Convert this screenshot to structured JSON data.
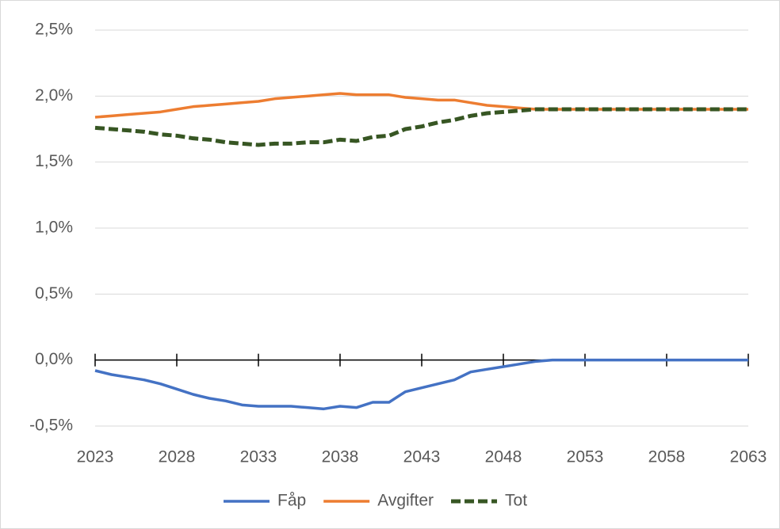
{
  "chart_data": {
    "type": "line",
    "x": [
      2023,
      2024,
      2025,
      2026,
      2027,
      2028,
      2029,
      2030,
      2031,
      2032,
      2033,
      2034,
      2035,
      2036,
      2037,
      2038,
      2039,
      2040,
      2041,
      2042,
      2043,
      2044,
      2045,
      2046,
      2047,
      2048,
      2049,
      2050,
      2051,
      2052,
      2053,
      2054,
      2055,
      2056,
      2057,
      2058,
      2059,
      2060,
      2061,
      2062,
      2063
    ],
    "series": [
      {
        "name": "Fåp",
        "color": "#4472c4",
        "dash": false,
        "values": [
          -0.08,
          -0.11,
          -0.13,
          -0.15,
          -0.18,
          -0.22,
          -0.26,
          -0.29,
          -0.31,
          -0.34,
          -0.35,
          -0.35,
          -0.35,
          -0.36,
          -0.37,
          -0.35,
          -0.36,
          -0.32,
          -0.32,
          -0.24,
          -0.21,
          -0.18,
          -0.15,
          -0.09,
          -0.07,
          -0.05,
          -0.03,
          -0.01,
          0,
          0,
          0,
          0,
          0,
          0,
          0,
          0,
          0,
          0,
          0,
          0,
          0
        ]
      },
      {
        "name": "Avgifter",
        "color": "#ed7d31",
        "dash": false,
        "values": [
          1.84,
          1.85,
          1.86,
          1.87,
          1.88,
          1.9,
          1.92,
          1.93,
          1.94,
          1.95,
          1.96,
          1.98,
          1.99,
          2.0,
          2.01,
          2.02,
          2.01,
          2.01,
          2.01,
          1.99,
          1.98,
          1.97,
          1.97,
          1.95,
          1.93,
          1.92,
          1.91,
          1.9,
          1.9,
          1.9,
          1.9,
          1.9,
          1.9,
          1.9,
          1.9,
          1.9,
          1.9,
          1.9,
          1.9,
          1.9,
          1.9
        ]
      },
      {
        "name": "Tot",
        "color": "#375623",
        "dash": true,
        "values": [
          1.76,
          1.75,
          1.74,
          1.73,
          1.71,
          1.7,
          1.68,
          1.67,
          1.65,
          1.64,
          1.63,
          1.64,
          1.64,
          1.65,
          1.65,
          1.67,
          1.66,
          1.69,
          1.7,
          1.75,
          1.77,
          1.8,
          1.82,
          1.85,
          1.87,
          1.88,
          1.89,
          1.9,
          1.9,
          1.9,
          1.9,
          1.9,
          1.9,
          1.9,
          1.9,
          1.9,
          1.9,
          1.9,
          1.9,
          1.9,
          1.9
        ]
      }
    ],
    "xlim": [
      2023,
      2063
    ],
    "xticks": [
      2023,
      2028,
      2033,
      2038,
      2043,
      2048,
      2053,
      2058,
      2063
    ],
    "ylim": [
      -0.5,
      2.5
    ],
    "yticks": [
      {
        "value": -0.5,
        "label": "-0,5%"
      },
      {
        "value": 0,
        "label": "0,0%"
      },
      {
        "value": 0.5,
        "label": "0,5%"
      },
      {
        "value": 1,
        "label": "1,0%"
      },
      {
        "value": 1.5,
        "label": "1,5%"
      },
      {
        "value": 2,
        "label": "2,0%"
      },
      {
        "value": 2.5,
        "label": "2,5%"
      }
    ],
    "grid": true,
    "legend": "bottom"
  }
}
